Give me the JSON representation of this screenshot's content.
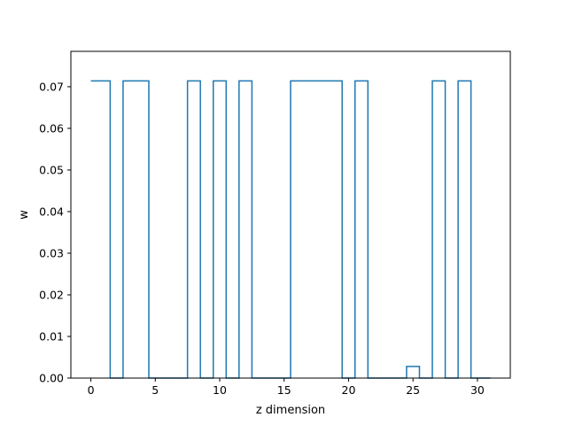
{
  "chart_data": {
    "type": "line",
    "drawstyle": "steps-mid",
    "title": "",
    "xlabel": "z dimension",
    "ylabel": "w",
    "xlim": [
      -1.55,
      32.55
    ],
    "ylim": [
      0,
      0.0785
    ],
    "xticks": [
      0,
      5,
      10,
      15,
      20,
      25,
      30
    ],
    "yticks": [
      0.0,
      0.01,
      0.02,
      0.03,
      0.04,
      0.05,
      0.06,
      0.07
    ],
    "ytick_labels": [
      "0.00",
      "0.01",
      "0.02",
      "0.03",
      "0.04",
      "0.05",
      "0.06",
      "0.07"
    ],
    "grid": false,
    "series": [
      {
        "color": "#1f77b4",
        "x": [
          0,
          1,
          2,
          3,
          4,
          5,
          6,
          7,
          8,
          9,
          10,
          11,
          12,
          13,
          14,
          15,
          16,
          17,
          18,
          19,
          20,
          21,
          22,
          23,
          24,
          25,
          26,
          27,
          28,
          29,
          30,
          31
        ],
        "values": [
          0.0714,
          0.0714,
          0,
          0.0714,
          0.0714,
          0,
          0,
          0,
          0.0714,
          0,
          0.0714,
          0,
          0.0714,
          0,
          0,
          0,
          0.0714,
          0.0714,
          0.0714,
          0.0714,
          0,
          0.0714,
          0,
          0,
          0,
          0.0028,
          0,
          0.0714,
          0,
          0.0714,
          0,
          0
        ]
      }
    ]
  }
}
